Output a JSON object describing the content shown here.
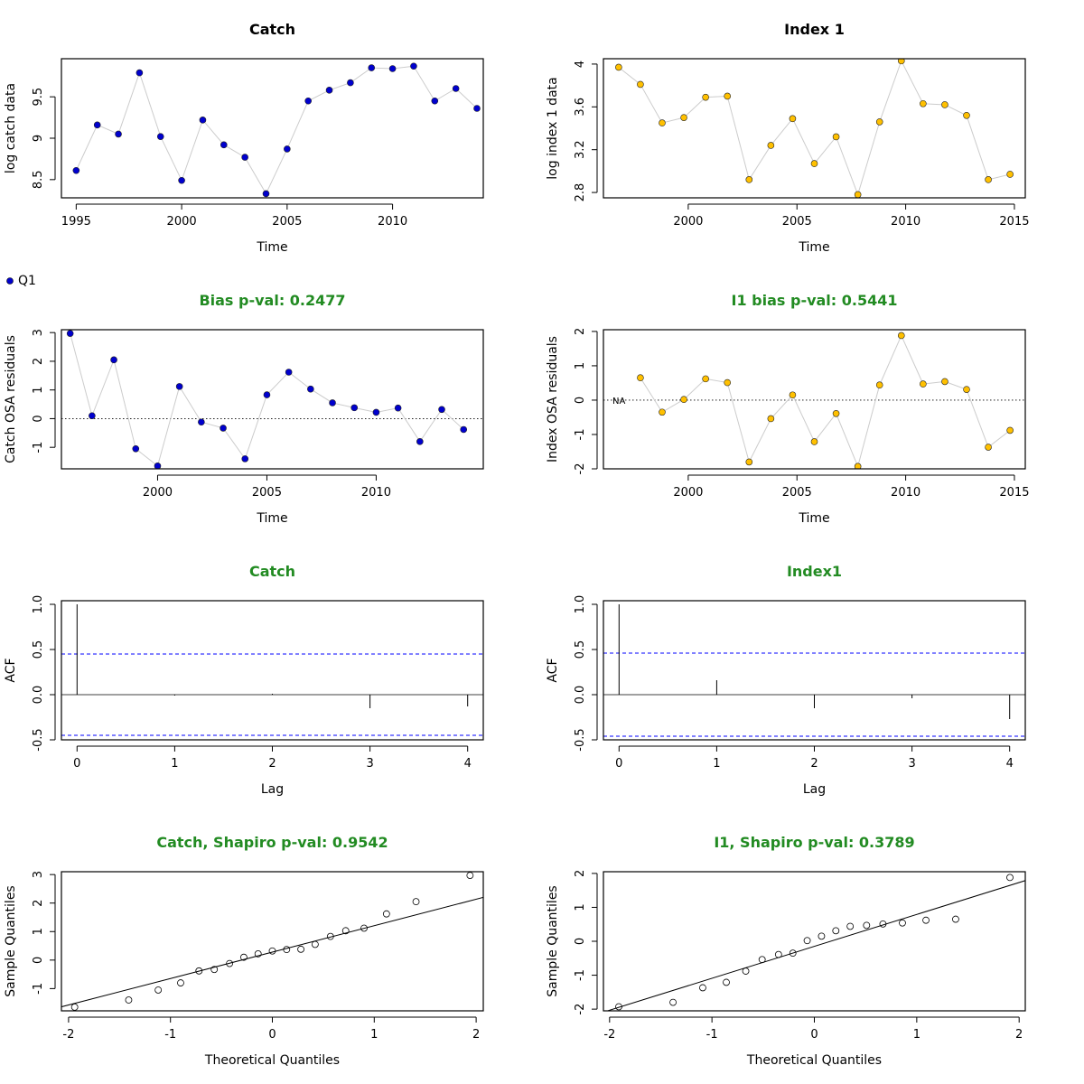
{
  "colors": {
    "title_black": "#000000",
    "title_green": "#228b22",
    "catch_point": "#0000cd",
    "index_point": "#ffc000",
    "ci_line": "#0000ff",
    "connector": "#cccccc"
  },
  "legend": {
    "label": "Q1"
  },
  "chart_data": [
    {
      "id": "catch-data",
      "type": "line",
      "title": "Catch",
      "title_color": "black",
      "xlabel": "Time",
      "ylabel": "log catch data",
      "xlim": [
        1994.3,
        2014.3
      ],
      "ylim": [
        8.28,
        9.96
      ],
      "xticks": [
        1995,
        2000,
        2005,
        2010
      ],
      "yticks": [
        8.5,
        9.0,
        9.5
      ],
      "point_color": "catch",
      "x": [
        1995,
        1996,
        1997,
        1998,
        1999,
        2000,
        2001,
        2002,
        2003,
        2004,
        2005,
        2006,
        2007,
        2008,
        2009,
        2010,
        2011,
        2012,
        2013,
        2014
      ],
      "y": [
        8.61,
        9.16,
        9.05,
        9.79,
        9.02,
        8.49,
        9.22,
        8.92,
        8.77,
        8.33,
        8.87,
        9.45,
        9.58,
        9.67,
        9.85,
        9.84,
        9.87,
        9.45,
        9.6,
        9.36
      ]
    },
    {
      "id": "index-data",
      "type": "line",
      "title": "Index 1",
      "title_color": "black",
      "xlabel": "Time",
      "ylabel": "log index 1 data",
      "xlim": [
        1996.1,
        2015.5
      ],
      "ylim": [
        2.75,
        4.05
      ],
      "xticks": [
        2000,
        2005,
        2010,
        2015
      ],
      "yticks": [
        2.8,
        3.2,
        3.6,
        4.0
      ],
      "point_color": "index",
      "x": [
        1996.8,
        1997.8,
        1998.8,
        1999.8,
        2000.8,
        2001.8,
        2002.8,
        2003.8,
        2004.8,
        2005.8,
        2006.8,
        2007.8,
        2008.8,
        2009.8,
        2010.8,
        2011.8,
        2012.8,
        2013.8,
        2014.8
      ],
      "y": [
        3.97,
        3.81,
        3.45,
        3.5,
        3.69,
        3.7,
        2.92,
        3.24,
        3.49,
        3.07,
        3.32,
        2.78,
        3.46,
        4.03,
        3.63,
        3.62,
        3.52,
        2.92,
        2.97
      ]
    },
    {
      "id": "catch-resid",
      "type": "scatter",
      "title": "Bias p-val: 0.2477",
      "title_color": "green",
      "xlabel": "Time",
      "ylabel": "Catch OSA residuals",
      "xlim": [
        1995.6,
        2014.9
      ],
      "ylim": [
        -1.75,
        3.1
      ],
      "xticks": [
        2000,
        2005,
        2010
      ],
      "yticks": [
        -1,
        0,
        1,
        2,
        3
      ],
      "hline": 0,
      "point_color": "catch",
      "x": [
        1996,
        1997,
        1998,
        1999,
        2000,
        2001,
        2002,
        2003,
        2004,
        2005,
        2006,
        2007,
        2008,
        2009,
        2010,
        2011,
        2012,
        2013,
        2014
      ],
      "y": [
        2.97,
        0.1,
        2.05,
        -1.05,
        -1.65,
        1.12,
        -0.12,
        -0.33,
        -1.4,
        0.83,
        1.62,
        1.03,
        0.55,
        0.38,
        0.22,
        0.37,
        -0.8,
        0.32,
        -0.38
      ]
    },
    {
      "id": "index-resid",
      "type": "scatter",
      "title": "I1 bias p-val: 0.5441",
      "title_color": "green",
      "xlabel": "Time",
      "ylabel": "Index OSA residuals",
      "xlim": [
        1996.1,
        2015.5
      ],
      "ylim": [
        -2.0,
        2.05
      ],
      "xticks": [
        2000,
        2005,
        2010,
        2015
      ],
      "yticks": [
        -2,
        -1,
        0,
        1,
        2
      ],
      "hline": 0,
      "point_color": "index",
      "na_label": "NA",
      "x": [
        1997.8,
        1998.8,
        1999.8,
        2000.8,
        2001.8,
        2002.8,
        2003.8,
        2004.8,
        2005.8,
        2006.8,
        2007.8,
        2008.8,
        2009.8,
        2010.8,
        2011.8,
        2012.8,
        2013.8,
        2014.8
      ],
      "y": [
        0.65,
        -0.35,
        0.02,
        0.62,
        0.51,
        -1.8,
        -0.54,
        0.15,
        -1.21,
        -0.39,
        -1.93,
        0.44,
        1.88,
        0.47,
        0.54,
        0.31,
        -1.37,
        -0.88
      ]
    },
    {
      "id": "catch-acf",
      "type": "bar",
      "title": "Catch",
      "title_color": "green",
      "xlabel": "Lag",
      "ylabel": "ACF",
      "xlim": [
        -0.16,
        4.16
      ],
      "ylim": [
        -0.5,
        1.04
      ],
      "xticks": [
        0,
        1,
        2,
        3,
        4
      ],
      "yticks": [
        -0.5,
        0.0,
        0.5,
        1.0
      ],
      "lags": [
        0,
        1,
        2,
        3,
        4
      ],
      "acf": [
        1.0,
        -0.01,
        0.01,
        -0.15,
        -0.13
      ],
      "ci": 0.45
    },
    {
      "id": "index-acf",
      "type": "bar",
      "title": "Index1",
      "title_color": "green",
      "xlabel": "Lag",
      "ylabel": "ACF",
      "xlim": [
        -0.16,
        4.16
      ],
      "ylim": [
        -0.5,
        1.04
      ],
      "xticks": [
        0,
        1,
        2,
        3,
        4
      ],
      "yticks": [
        -0.5,
        0.0,
        0.5,
        1.0
      ],
      "lags": [
        0,
        1,
        2,
        3,
        4
      ],
      "acf": [
        1.0,
        0.16,
        -0.15,
        -0.04,
        -0.27
      ],
      "ci": 0.46
    },
    {
      "id": "catch-qq",
      "type": "scatter",
      "title": "Catch, Shapiro p-val: 0.9542",
      "title_color": "green",
      "xlabel": "Theoretical Quantiles",
      "ylabel": "Sample Quantiles",
      "xlim": [
        -2.07,
        2.07
      ],
      "ylim": [
        -1.78,
        3.1
      ],
      "xticks": [
        -2,
        -1,
        0,
        1,
        2
      ],
      "yticks": [
        -1,
        0,
        1,
        2,
        3
      ],
      "open_points": true,
      "qqline": [
        [
          -2.2,
          -1.76
        ],
        [
          2.2,
          2.32
        ]
      ],
      "x": [
        -1.94,
        -1.41,
        -1.12,
        -0.9,
        -0.72,
        -0.57,
        -0.42,
        -0.28,
        -0.14,
        0.0,
        0.14,
        0.28,
        0.42,
        0.57,
        0.72,
        0.9,
        1.12,
        1.41,
        1.94
      ],
      "y": [
        -1.65,
        -1.4,
        -1.05,
        -0.8,
        -0.38,
        -0.33,
        -0.12,
        0.1,
        0.22,
        0.32,
        0.37,
        0.38,
        0.55,
        0.83,
        1.03,
        1.12,
        1.62,
        2.05,
        2.97
      ]
    },
    {
      "id": "index-qq",
      "type": "scatter",
      "title": "I1, Shapiro p-val: 0.3789",
      "title_color": "green",
      "xlabel": "Theoretical Quantiles",
      "ylabel": "Sample Quantiles",
      "xlim": [
        -2.06,
        2.06
      ],
      "ylim": [
        -2.05,
        2.05
      ],
      "xticks": [
        -2,
        -1,
        0,
        1,
        2
      ],
      "yticks": [
        -2,
        -1,
        0,
        1,
        2
      ],
      "open_points": true,
      "qqline": [
        [
          -2.2,
          -2.22
        ],
        [
          2.2,
          1.92
        ]
      ],
      "x": [
        -1.91,
        -1.38,
        -1.09,
        -0.86,
        -0.67,
        -0.51,
        -0.35,
        -0.21,
        -0.07,
        0.07,
        0.21,
        0.35,
        0.51,
        0.67,
        0.86,
        1.09,
        1.38,
        1.91
      ],
      "y": [
        -1.93,
        -1.8,
        -1.37,
        -1.21,
        -0.88,
        -0.54,
        -0.39,
        -0.35,
        0.02,
        0.15,
        0.31,
        0.44,
        0.47,
        0.51,
        0.54,
        0.62,
        0.65,
        1.88
      ]
    }
  ]
}
